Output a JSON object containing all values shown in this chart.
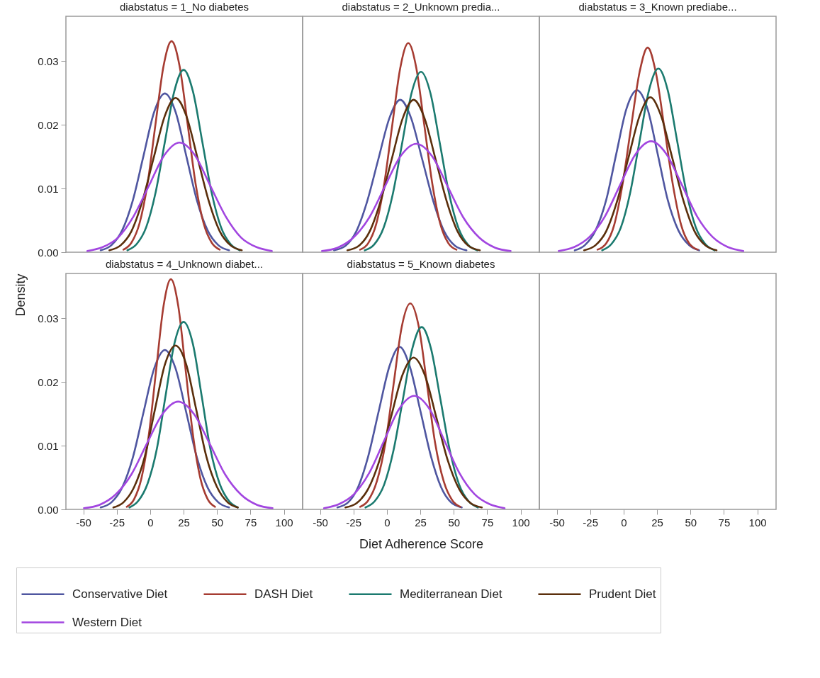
{
  "chart_data": [
    {
      "type": "line",
      "title": "diabstatus = 1_No diabetes",
      "xlim": [
        -63,
        114
      ],
      "ylim": [
        0,
        0.037
      ],
      "yticks": [
        {
          "value": 0,
          "label": "0.00"
        },
        {
          "value": 0.01,
          "label": "0.01"
        },
        {
          "value": 0.02,
          "label": "0.02"
        },
        {
          "value": 0.03,
          "label": "0.03"
        }
      ],
      "tick_labels": "y",
      "line_style": "solid",
      "series": [
        {
          "color": "#4f56a0",
          "x": [
            -37,
            -29,
            -21,
            -13,
            -5,
            3,
            11,
            19,
            27,
            35,
            43,
            51,
            59
          ],
          "values": [
            0.0003,
            0.0011,
            0.0034,
            0.0081,
            0.0151,
            0.022,
            0.0249,
            0.022,
            0.0151,
            0.0081,
            0.0034,
            0.0011,
            0.0003
          ]
        },
        {
          "color": "#a63c32",
          "x": [
            -20,
            -14,
            -8,
            -2,
            4,
            10,
            16,
            22,
            28,
            34,
            40,
            46,
            52
          ],
          "values": [
            0.0004,
            0.0015,
            0.0045,
            0.0107,
            0.0201,
            0.0292,
            0.0331,
            0.0292,
            0.0201,
            0.0107,
            0.0045,
            0.0015,
            0.0004
          ]
        },
        {
          "color": "#1b7a6f",
          "x": [
            -17,
            -10,
            -3,
            4,
            11,
            18,
            25,
            32,
            39,
            46,
            53,
            60,
            67
          ],
          "values": [
            0.0003,
            0.0013,
            0.0039,
            0.0093,
            0.0173,
            0.0252,
            0.0286,
            0.0252,
            0.0173,
            0.0093,
            0.0039,
            0.0013,
            0.0003
          ]
        },
        {
          "color": "#5b2f0c",
          "x": [
            -30.5,
            -22,
            -14,
            -6,
            2.5,
            11,
            19,
            27,
            35.5,
            44,
            52,
            60,
            68.5
          ],
          "values": [
            0.0003,
            0.0011,
            0.0033,
            0.0079,
            0.0147,
            0.0214,
            0.0242,
            0.0214,
            0.0147,
            0.0079,
            0.0033,
            0.0011,
            0.0003
          ]
        },
        {
          "color": "#a246e0",
          "x": [
            -47,
            -35.5,
            -24,
            -12.5,
            -1,
            10.5,
            22,
            33.5,
            45,
            56.5,
            68,
            79.5,
            91
          ],
          "values": [
            0.0002,
            0.0008,
            0.0023,
            0.0056,
            0.0104,
            0.0152,
            0.0172,
            0.0152,
            0.0104,
            0.0056,
            0.0023,
            0.0008,
            0.0002
          ]
        }
      ]
    },
    {
      "type": "line",
      "title": "diabstatus = 2_Unknown predia...",
      "xlim": [
        -63,
        114
      ],
      "ylim": [
        0,
        0.037
      ],
      "tick_labels": false,
      "line_style": "solid",
      "series": [
        {
          "color": "#4f56a0",
          "x": [
            -39.5,
            -31,
            -23,
            -15,
            -6.5,
            2,
            10,
            18,
            26.5,
            35,
            43,
            51,
            59.5
          ],
          "values": [
            0.0003,
            0.001,
            0.0032,
            0.0078,
            0.0145,
            0.0211,
            0.0239,
            0.0211,
            0.0145,
            0.0078,
            0.0032,
            0.001,
            0.0003
          ]
        },
        {
          "color": "#a63c32",
          "x": [
            -20,
            -14,
            -8,
            -2,
            4,
            10,
            16,
            22,
            28,
            34,
            40,
            46,
            52
          ],
          "values": [
            0.0004,
            0.0014,
            0.0044,
            0.0107,
            0.0199,
            0.0289,
            0.0328,
            0.0289,
            0.0199,
            0.0107,
            0.0044,
            0.0014,
            0.0004
          ]
        },
        {
          "color": "#1b7a6f",
          "x": [
            -16.5,
            -9.5,
            -2.5,
            4.5,
            11.5,
            18.5,
            25.5,
            32.5,
            39.5,
            46.5,
            53.5,
            60.5,
            67.5
          ],
          "values": [
            0.0003,
            0.0012,
            0.0038,
            0.0092,
            0.0172,
            0.025,
            0.0283,
            0.025,
            0.0172,
            0.0092,
            0.0038,
            0.0012,
            0.0003
          ]
        },
        {
          "color": "#5b2f0c",
          "x": [
            -29.5,
            -21,
            -13,
            -5,
            3.5,
            12,
            20,
            28,
            36.5,
            45,
            53,
            61,
            69.5
          ],
          "values": [
            0.0003,
            0.001,
            0.0032,
            0.0078,
            0.0145,
            0.0211,
            0.0239,
            0.0211,
            0.0145,
            0.0078,
            0.0032,
            0.001,
            0.0003
          ]
        },
        {
          "color": "#a246e0",
          "x": [
            -48.5,
            -37,
            -25,
            -13,
            -1.5,
            10,
            22,
            34,
            45.5,
            57,
            69,
            81,
            92.5
          ],
          "values": [
            0.0002,
            0.0007,
            0.0023,
            0.0055,
            0.0103,
            0.015,
            0.017,
            0.015,
            0.0103,
            0.0055,
            0.0023,
            0.0007,
            0.0002
          ]
        }
      ]
    },
    {
      "type": "line",
      "title": "diabstatus = 3_Known prediabe...",
      "xlim": [
        -63,
        114
      ],
      "ylim": [
        0,
        0.037
      ],
      "tick_labels": false,
      "line_style": "solid",
      "series": [
        {
          "color": "#4f56a0",
          "x": [
            -36.5,
            -29,
            -21,
            -13,
            -5.5,
            2,
            10,
            18,
            25.5,
            33,
            41,
            49,
            56.5
          ],
          "values": [
            0.0003,
            0.0011,
            0.0034,
            0.0082,
            0.0154,
            0.0224,
            0.0254,
            0.0224,
            0.0154,
            0.0082,
            0.0034,
            0.0011,
            0.0003
          ]
        },
        {
          "color": "#a63c32",
          "x": [
            -19.5,
            -13,
            -7,
            -1,
            5.5,
            12,
            18,
            24,
            30.5,
            37,
            43,
            49,
            55.5
          ],
          "values": [
            0.0004,
            0.0014,
            0.0043,
            0.0104,
            0.0195,
            0.0283,
            0.0321,
            0.0283,
            0.0195,
            0.0104,
            0.0043,
            0.0014,
            0.0004
          ]
        },
        {
          "color": "#1b7a6f",
          "x": [
            -16,
            -9,
            -2,
            5,
            12,
            19,
            26,
            33,
            40,
            47,
            54,
            61,
            68
          ],
          "values": [
            0.0003,
            0.0013,
            0.0039,
            0.0094,
            0.0175,
            0.0254,
            0.0288,
            0.0254,
            0.0175,
            0.0094,
            0.0039,
            0.0013,
            0.0003
          ]
        },
        {
          "color": "#5b2f0c",
          "x": [
            -29.5,
            -21,
            -13,
            -5,
            3.5,
            12,
            20,
            28,
            36.5,
            45,
            53,
            61,
            69.5
          ],
          "values": [
            0.0003,
            0.0011,
            0.0033,
            0.0079,
            0.0147,
            0.0214,
            0.0243,
            0.0214,
            0.0147,
            0.0079,
            0.0033,
            0.0011,
            0.0003
          ]
        },
        {
          "color": "#a246e0",
          "x": [
            -48.5,
            -37,
            -25.5,
            -14,
            -2.5,
            9,
            20.5,
            32,
            43.5,
            55,
            66.5,
            78,
            89.5
          ],
          "values": [
            0.0002,
            0.0008,
            0.0024,
            0.0056,
            0.0106,
            0.0154,
            0.0174,
            0.0154,
            0.0106,
            0.0056,
            0.0024,
            0.0008,
            0.0002
          ]
        }
      ]
    },
    {
      "type": "line",
      "title": "diabstatus = 4_Unknown diabet...",
      "ylabel": "Density",
      "xlim": [
        -63,
        114
      ],
      "xticks": [
        -50,
        -25,
        0,
        25,
        50,
        75,
        100
      ],
      "ylim": [
        0,
        0.037
      ],
      "yticks": [
        {
          "value": 0,
          "label": "0.00"
        },
        {
          "value": 0.01,
          "label": "0.01"
        },
        {
          "value": 0.02,
          "label": "0.02"
        },
        {
          "value": 0.03,
          "label": "0.03"
        }
      ],
      "legend": "bottom",
      "line_style": "solid",
      "series": [
        {
          "name": "Conservative Diet",
          "color": "#4f56a0",
          "x": [
            -37,
            -29,
            -21,
            -13,
            -5,
            3,
            11,
            19,
            27,
            35,
            43,
            51,
            59
          ],
          "values": [
            0.0003,
            0.0011,
            0.0034,
            0.0081,
            0.0152,
            0.0221,
            0.025,
            0.0221,
            0.0152,
            0.0081,
            0.0034,
            0.0011,
            0.0003
          ]
        },
        {
          "name": "DASH Diet",
          "color": "#a63c32",
          "x": [
            -17.5,
            -12,
            -6.5,
            -1,
            4.5,
            10,
            15.5,
            21,
            26.5,
            32,
            37.5,
            43,
            48.5
          ],
          "values": [
            0.0004,
            0.0016,
            0.0049,
            0.0117,
            0.0219,
            0.0319,
            0.0361,
            0.0319,
            0.0219,
            0.0117,
            0.0049,
            0.0016,
            0.0004
          ]
        },
        {
          "name": "Mediterranean Diet",
          "color": "#1b7a6f",
          "x": [
            -15.5,
            -9,
            -2,
            5,
            11.5,
            18,
            25,
            32,
            38.5,
            45,
            52,
            59,
            65.5
          ],
          "values": [
            0.0003,
            0.0013,
            0.004,
            0.0095,
            0.0178,
            0.0259,
            0.0294,
            0.0259,
            0.0178,
            0.0095,
            0.004,
            0.0013,
            0.0003
          ]
        },
        {
          "name": "Prudent Diet",
          "color": "#5b2f0c",
          "x": [
            -27.5,
            -20,
            -12,
            -4,
            3.5,
            11,
            19,
            27,
            34.5,
            42,
            50,
            58,
            65.5
          ],
          "values": [
            0.0003,
            0.0011,
            0.0035,
            0.0083,
            0.0156,
            0.0227,
            0.0257,
            0.0227,
            0.0156,
            0.0083,
            0.0035,
            0.0011,
            0.0003
          ]
        },
        {
          "name": "Western Diet",
          "color": "#a246e0",
          "x": [
            -49.5,
            -38,
            -26,
            -14,
            -2.5,
            9,
            21,
            33,
            44.5,
            56,
            68,
            80,
            91.5
          ],
          "values": [
            0.0002,
            0.0007,
            0.0023,
            0.0055,
            0.0103,
            0.0149,
            0.0169,
            0.0149,
            0.0103,
            0.0055,
            0.0023,
            0.0007,
            0.0002
          ]
        }
      ]
    },
    {
      "type": "line",
      "title": "diabstatus = 5_Known diabetes",
      "xlabel": "Diet Adherence Score",
      "xlim": [
        -63,
        114
      ],
      "xticks": [
        -50,
        -25,
        0,
        25,
        50,
        75,
        100
      ],
      "ylim": [
        0,
        0.037
      ],
      "tick_labels": "x",
      "line_style": "solid",
      "series": [
        {
          "color": "#4f56a0",
          "x": [
            -37,
            -29,
            -21.5,
            -14,
            -6,
            2,
            9.5,
            17,
            25,
            33,
            40.5,
            48,
            56
          ],
          "values": [
            0.0003,
            0.0011,
            0.0035,
            0.0083,
            0.0155,
            0.0225,
            0.0255,
            0.0225,
            0.0155,
            0.0083,
            0.0035,
            0.0011,
            0.0003
          ]
        },
        {
          "color": "#a63c32",
          "x": [
            -20,
            -14,
            -7.5,
            -1,
            5,
            11,
            17.5,
            24,
            30,
            36,
            42.5,
            49,
            55
          ],
          "values": [
            0.0004,
            0.0014,
            0.0044,
            0.0105,
            0.0196,
            0.0285,
            0.0323,
            0.0285,
            0.0196,
            0.0105,
            0.0044,
            0.0014,
            0.0004
          ]
        },
        {
          "color": "#1b7a6f",
          "x": [
            -16,
            -9,
            -2,
            5,
            12,
            19,
            26,
            33,
            40,
            47,
            54,
            61,
            68
          ],
          "values": [
            0.0003,
            0.0013,
            0.0039,
            0.0093,
            0.0173,
            0.0252,
            0.0286,
            0.0252,
            0.0173,
            0.0093,
            0.0039,
            0.0013,
            0.0003
          ]
        },
        {
          "color": "#5b2f0c",
          "x": [
            -31,
            -22.5,
            -14,
            -5.5,
            3,
            11.5,
            20,
            28.5,
            37,
            45.5,
            54,
            62.5,
            71
          ],
          "values": [
            0.0003,
            0.001,
            0.0032,
            0.0077,
            0.0144,
            0.021,
            0.0238,
            0.021,
            0.0144,
            0.0077,
            0.0032,
            0.001,
            0.0003
          ]
        },
        {
          "color": "#a246e0",
          "x": [
            -47,
            -36,
            -24.5,
            -13,
            -2,
            9,
            20.5,
            32,
            43,
            54,
            65.5,
            77,
            88
          ],
          "values": [
            0.0002,
            0.0008,
            0.0024,
            0.0058,
            0.0108,
            0.0157,
            0.0178,
            0.0157,
            0.0108,
            0.0058,
            0.0024,
            0.0008,
            0.0002
          ]
        }
      ]
    },
    {
      "type": "line",
      "xlim": [
        -63,
        114
      ],
      "xticks": [
        -50,
        -25,
        0,
        25,
        50,
        75,
        100
      ],
      "ylim": [
        0,
        0.037
      ],
      "tick_labels": "x"
    }
  ]
}
